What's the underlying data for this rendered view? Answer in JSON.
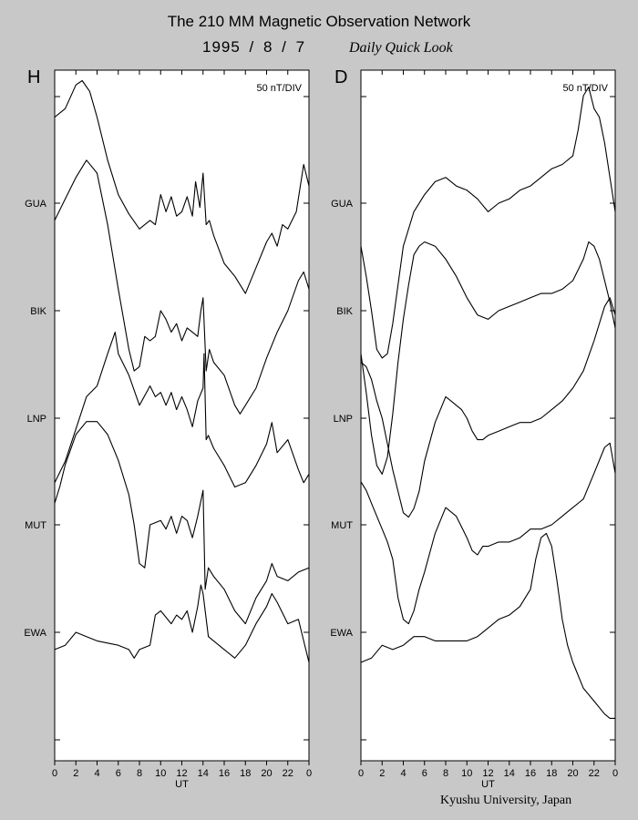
{
  "header": {
    "title": "The 210 MM Magnetic Observation Network",
    "date": "1995 / 8 / 7",
    "subtitle": "Daily Quick Look"
  },
  "footer": {
    "credit": "Kyushu University, Japan"
  },
  "chart_data": [
    {
      "type": "line",
      "panel": "H",
      "scale_label": "50 nT/DIV",
      "xlabel": "UT",
      "x_ticks": [
        "0",
        "2",
        "4",
        "6",
        "8",
        "10",
        "12",
        "14",
        "16",
        "18",
        "20",
        "22",
        "0"
      ],
      "xlim": [
        0,
        24
      ],
      "y_units": "nT relative to station baseline",
      "series": [
        {
          "name": "GUA",
          "baseline": 0,
          "x": [
            0,
            1,
            2,
            2.6,
            3.3,
            4,
            5,
            6,
            7,
            8,
            8.5,
            9,
            9.5,
            10,
            10.5,
            11,
            11.5,
            12,
            12.5,
            13,
            13.3,
            13.7,
            14,
            14.3,
            14.6,
            15,
            16,
            17,
            18,
            19,
            20,
            20.5,
            21,
            21.5,
            22,
            22.8,
            23.5,
            24
          ],
          "y": [
            40,
            44,
            55,
            57,
            52,
            40,
            20,
            4,
            -5,
            -12,
            -10,
            -8,
            -10,
            4,
            -4,
            3,
            -6,
            -4,
            3,
            -6,
            10,
            -2,
            14,
            -10,
            -8,
            -15,
            -28,
            -34,
            -42,
            -30,
            -18,
            -14,
            -20,
            -10,
            -12,
            -4,
            18,
            8
          ]
        },
        {
          "name": "BIK",
          "baseline": 0,
          "x": [
            0,
            1,
            2,
            3,
            4,
            5,
            6,
            7,
            7.5,
            8,
            8.5,
            9,
            9.5,
            10,
            10.5,
            11,
            11.5,
            12,
            12.5,
            13,
            13.5,
            13.8,
            14,
            14.3,
            14.6,
            15,
            16,
            17,
            17.5,
            18,
            19,
            20,
            21,
            22,
            23,
            23.5,
            24
          ],
          "y": [
            42,
            52,
            62,
            70,
            64,
            40,
            10,
            -18,
            -28,
            -26,
            -12,
            -14,
            -12,
            0,
            -4,
            -10,
            -6,
            -14,
            -8,
            -10,
            -12,
            0,
            6,
            -28,
            -18,
            -24,
            -30,
            -44,
            -48,
            -44,
            -36,
            -22,
            -10,
            0,
            14,
            18,
            10
          ]
        },
        {
          "name": "LNP",
          "baseline": 0,
          "x": [
            0,
            1,
            2,
            3,
            4,
            5,
            5.7,
            6,
            7,
            8,
            9,
            9.5,
            10,
            10.5,
            11,
            11.5,
            12,
            12.5,
            13,
            13.5,
            14,
            14.1,
            14.3,
            14.5,
            15,
            16,
            17,
            18,
            19,
            20,
            20.5,
            21,
            22,
            23,
            23.5,
            24
          ],
          "y": [
            -30,
            -20,
            -5,
            10,
            15,
            30,
            40,
            30,
            20,
            6,
            15,
            10,
            12,
            6,
            12,
            4,
            10,
            4,
            -4,
            8,
            14,
            30,
            -10,
            -8,
            -14,
            -22,
            -32,
            -30,
            -22,
            -12,
            -2,
            -16,
            -10,
            -24,
            -30,
            -26
          ]
        },
        {
          "name": "MUT",
          "baseline": 0,
          "x": [
            0,
            0.5,
            1,
            2,
            3,
            4,
            5,
            6,
            7,
            7.5,
            8,
            8.5,
            9,
            10,
            10.5,
            11,
            11.5,
            12,
            12.5,
            13,
            13.5,
            14,
            14.2,
            14.5,
            15,
            16,
            17,
            18,
            19,
            20,
            20.5,
            21,
            22,
            23,
            24
          ],
          "y": [
            10,
            18,
            28,
            42,
            48,
            48,
            42,
            30,
            14,
            0,
            -18,
            -20,
            0,
            2,
            -2,
            4,
            -4,
            4,
            2,
            -6,
            4,
            16,
            -30,
            -20,
            -24,
            -30,
            -40,
            -46,
            -34,
            -26,
            -18,
            -24,
            -26,
            -22,
            -20
          ]
        },
        {
          "name": "EWA",
          "baseline": 0,
          "x": [
            0,
            1,
            2,
            3,
            4,
            5,
            6,
            7,
            7.5,
            8,
            9,
            9.5,
            10,
            11,
            11.5,
            12,
            12.5,
            13,
            13.5,
            13.8,
            14,
            14.5,
            15,
            16,
            17,
            18,
            19,
            20,
            20.5,
            21,
            22,
            23,
            23.5,
            24
          ],
          "y": [
            -8,
            -6,
            0,
            -2,
            -4,
            -5,
            -6,
            -8,
            -12,
            -8,
            -6,
            8,
            10,
            4,
            8,
            6,
            10,
            0,
            12,
            22,
            18,
            -2,
            -4,
            -8,
            -12,
            -6,
            4,
            12,
            18,
            14,
            4,
            6,
            -4,
            -14
          ]
        }
      ]
    },
    {
      "type": "line",
      "panel": "D",
      "scale_label": "50 nT/DIV",
      "xlabel": "UT",
      "x_ticks": [
        "0",
        "2",
        "4",
        "6",
        "8",
        "10",
        "12",
        "14",
        "16",
        "18",
        "20",
        "22",
        "0"
      ],
      "xlim": [
        0,
        24
      ],
      "y_units": "nT relative to station baseline",
      "series": [
        {
          "name": "GUA",
          "baseline": 0,
          "x": [
            0,
            0.5,
            1,
            1.5,
            2,
            2.5,
            3,
            3.5,
            4,
            5,
            6,
            7,
            8,
            9,
            10,
            11,
            12,
            13,
            14,
            15,
            16,
            17,
            18,
            19,
            20,
            20.5,
            21,
            21.5,
            22,
            22.5,
            23,
            23.5,
            24
          ],
          "y": [
            -20,
            -34,
            -50,
            -68,
            -72,
            -70,
            -56,
            -38,
            -20,
            -4,
            4,
            10,
            12,
            8,
            6,
            2,
            -4,
            0,
            2,
            6,
            8,
            12,
            16,
            18,
            22,
            34,
            50,
            54,
            44,
            40,
            28,
            12,
            -4
          ]
        },
        {
          "name": "BIK",
          "baseline": 0,
          "x": [
            0,
            0.5,
            1,
            1.5,
            2,
            2.5,
            3,
            3.5,
            4,
            4.5,
            5,
            5.5,
            6,
            7,
            8,
            9,
            10,
            11,
            12,
            13,
            14,
            15,
            16,
            17,
            18,
            19,
            20,
            21,
            21.5,
            22,
            22.5,
            23,
            23.5,
            24
          ],
          "y": [
            -20,
            -38,
            -58,
            -72,
            -76,
            -68,
            -48,
            -24,
            -4,
            12,
            26,
            30,
            32,
            30,
            24,
            16,
            6,
            -2,
            -4,
            0,
            2,
            4,
            6,
            8,
            8,
            10,
            14,
            24,
            32,
            30,
            24,
            14,
            4,
            -8
          ]
        },
        {
          "name": "LNP",
          "baseline": 0,
          "x": [
            0,
            0.5,
            1,
            1.5,
            2,
            2.5,
            3,
            3.5,
            4,
            4.5,
            5,
            5.5,
            6,
            7,
            8,
            8.5,
            9,
            9.5,
            10,
            10.5,
            11,
            11.5,
            12,
            13,
            14,
            15,
            16,
            17,
            18,
            19,
            20,
            21,
            22,
            23,
            23.5,
            24
          ],
          "y": [
            26,
            24,
            18,
            8,
            0,
            -12,
            -24,
            -34,
            -44,
            -46,
            -42,
            -34,
            -20,
            -2,
            10,
            8,
            6,
            4,
            0,
            -6,
            -10,
            -10,
            -8,
            -6,
            -4,
            -2,
            -2,
            0,
            4,
            8,
            14,
            22,
            36,
            52,
            56,
            48
          ]
        },
        {
          "name": "MUT",
          "baseline": 0,
          "x": [
            0,
            0.5,
            1,
            1.5,
            2,
            2.5,
            3,
            3.5,
            4,
            4.5,
            5,
            5.5,
            6,
            7,
            8,
            9,
            10,
            10.5,
            11,
            11.5,
            12,
            13,
            14,
            15,
            16,
            17,
            18,
            19,
            20,
            21,
            22,
            23,
            23.5,
            24
          ],
          "y": [
            20,
            16,
            10,
            4,
            -2,
            -8,
            -16,
            -34,
            -44,
            -46,
            -40,
            -30,
            -22,
            -4,
            8,
            4,
            -6,
            -12,
            -14,
            -10,
            -10,
            -8,
            -8,
            -6,
            -2,
            -2,
            0,
            4,
            8,
            12,
            24,
            36,
            38,
            24
          ]
        },
        {
          "name": "EWA",
          "baseline": 0,
          "x": [
            0,
            1,
            2,
            3,
            4,
            5,
            6,
            7,
            8,
            9,
            10,
            11,
            12,
            13,
            14,
            15,
            16,
            16.5,
            17,
            17.5,
            18,
            18.5,
            19,
            19.5,
            20,
            21,
            22,
            23,
            23.5,
            24
          ],
          "y": [
            -14,
            -12,
            -6,
            -8,
            -6,
            -2,
            -2,
            -4,
            -4,
            -4,
            -4,
            -2,
            2,
            6,
            8,
            12,
            20,
            34,
            44,
            46,
            40,
            24,
            6,
            -6,
            -14,
            -26,
            -32,
            -38,
            -40,
            -40
          ]
        }
      ]
    }
  ]
}
